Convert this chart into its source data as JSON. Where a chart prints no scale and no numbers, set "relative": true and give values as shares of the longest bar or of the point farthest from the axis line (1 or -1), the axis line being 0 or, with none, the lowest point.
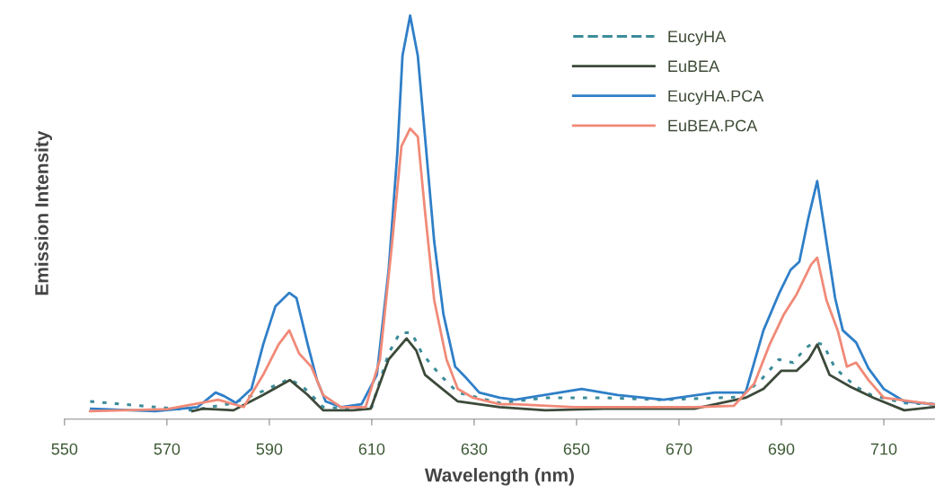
{
  "chart_data": {
    "type": "line",
    "relative": true,
    "xlabel": "Wavelength (nm)",
    "ylabel": "Emission Intensity",
    "xlim": [
      550,
      720
    ],
    "xticks": [
      550,
      570,
      590,
      610,
      630,
      650,
      670,
      690,
      710
    ],
    "legend": "top right",
    "grid": false,
    "marker": "none",
    "series": [
      {
        "name": "EucyHA",
        "color": "#3c8c9a",
        "line_style": "dotted",
        "x": [
          555,
          575,
          583,
          588.8,
          594,
          597,
          600.5,
          606,
          610,
          613.3,
          615.5,
          617.8,
          619.8,
          623.3,
          626.8,
          635,
          644,
          655.4,
          667,
          682,
          686,
          689.5,
          692.3,
          694.7,
          696.4,
          698.2,
          700.5,
          704.6,
          707.5,
          714,
          719.8
        ],
        "values": [
          0.044,
          0.022,
          0.04,
          0.07,
          0.1,
          0.075,
          0.03,
          0.026,
          0.03,
          0.163,
          0.214,
          0.214,
          0.163,
          0.11,
          0.066,
          0.04,
          0.053,
          0.053,
          0.048,
          0.055,
          0.097,
          0.148,
          0.14,
          0.176,
          0.19,
          0.185,
          0.126,
          0.08,
          0.06,
          0.04,
          0.037
        ]
      },
      {
        "name": "EuBEA",
        "color": "#3c4a3a",
        "line_style": "solid",
        "x": [
          575,
          577,
          583,
          588.8,
          594,
          597.5,
          600.5,
          606.3,
          609.8,
          613.3,
          616.8,
          618.7,
          620.4,
          623.3,
          626.8,
          635,
          643.9,
          655.4,
          673,
          683,
          686.5,
          690,
          693,
          695.3,
          697,
          699.4,
          703.5,
          708,
          714,
          719.8
        ],
        "values": [
          0.02,
          0.026,
          0.022,
          0.06,
          0.097,
          0.06,
          0.022,
          0.022,
          0.026,
          0.148,
          0.2,
          0.17,
          0.11,
          0.08,
          0.044,
          0.03,
          0.022,
          0.026,
          0.026,
          0.053,
          0.075,
          0.12,
          0.12,
          0.148,
          0.185,
          0.11,
          0.08,
          0.053,
          0.022,
          0.03
        ]
      },
      {
        "name": "EucyHA.PCA",
        "color": "#2f7fc8",
        "line_style": "solid",
        "x": [
          555.2,
          567.7,
          576,
          579.5,
          581.2,
          583.5,
          586.5,
          588.8,
          591.2,
          593.9,
          595.3,
          597.5,
          599.3,
          601,
          604,
          608,
          611,
          613.3,
          615,
          616,
          617.5,
          619,
          620.4,
          622.2,
          624,
          626.3,
          628.6,
          631,
          635,
          638,
          651,
          658,
          667,
          677,
          683,
          684,
          686.5,
          689.5,
          691.8,
          693.5,
          695.3,
          697,
          698.2,
          700.5,
          702,
          704.6,
          707,
          710,
          714,
          719.8
        ],
        "values": [
          0.026,
          0.02,
          0.03,
          0.066,
          0.057,
          0.04,
          0.075,
          0.185,
          0.28,
          0.313,
          0.3,
          0.185,
          0.097,
          0.044,
          0.03,
          0.037,
          0.11,
          0.37,
          0.66,
          0.9,
          1.0,
          0.9,
          0.7,
          0.44,
          0.26,
          0.13,
          0.1,
          0.066,
          0.053,
          0.048,
          0.075,
          0.06,
          0.048,
          0.066,
          0.066,
          0.11,
          0.22,
          0.31,
          0.37,
          0.39,
          0.5,
          0.59,
          0.49,
          0.3,
          0.22,
          0.19,
          0.126,
          0.075,
          0.044,
          0.037
        ]
      },
      {
        "name": "EuBEA.PCA",
        "color": "#f08a78",
        "line_style": "solid",
        "x": [
          555,
          570,
          580,
          585,
          588.8,
          591.8,
          593.9,
          595.8,
          598.2,
          600.5,
          604,
          608.8,
          611.6,
          614,
          615.8,
          617.5,
          619,
          620.4,
          622.2,
          624.6,
          626.8,
          629.8,
          635,
          638,
          649.6,
          661.4,
          673,
          680.7,
          684.7,
          687.7,
          690.5,
          693,
          695.8,
          697,
          698.8,
          701,
          702.8,
          704.6,
          707,
          710,
          719.8
        ],
        "values": [
          0.02,
          0.025,
          0.048,
          0.03,
          0.11,
          0.185,
          0.22,
          0.163,
          0.13,
          0.06,
          0.03,
          0.03,
          0.148,
          0.44,
          0.676,
          0.72,
          0.7,
          0.515,
          0.295,
          0.148,
          0.075,
          0.053,
          0.037,
          0.037,
          0.03,
          0.03,
          0.03,
          0.033,
          0.088,
          0.185,
          0.26,
          0.31,
          0.383,
          0.4,
          0.295,
          0.22,
          0.13,
          0.14,
          0.097,
          0.053,
          0.037
        ]
      }
    ]
  }
}
